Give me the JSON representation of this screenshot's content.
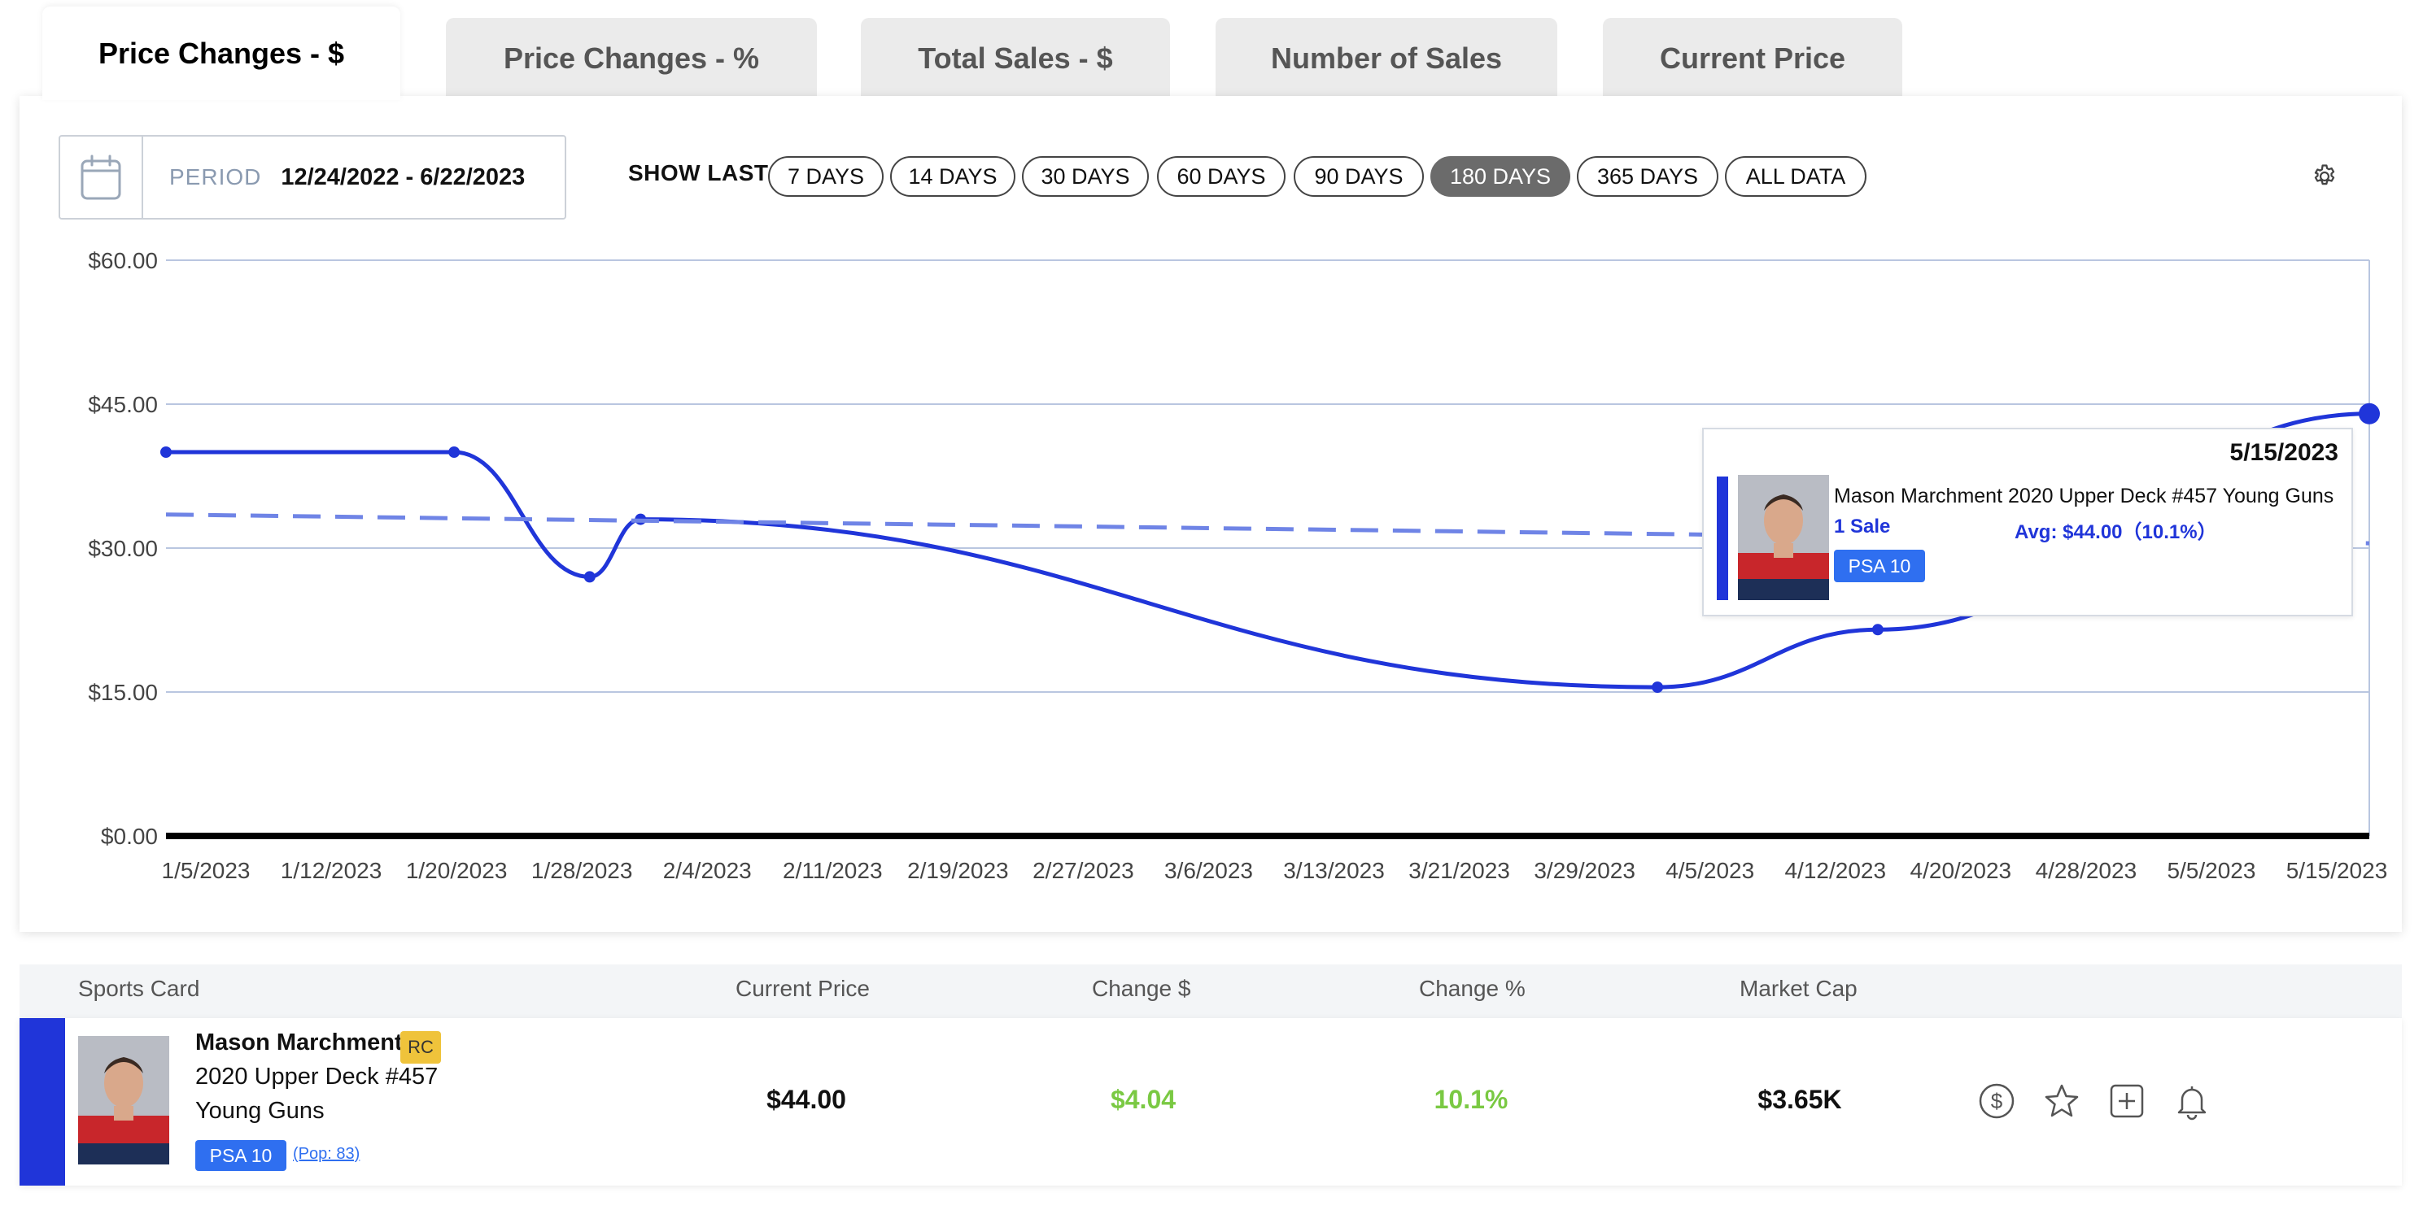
{
  "tabs": [
    {
      "label": "Price Changes - $",
      "active": true
    },
    {
      "label": "Price Changes - %",
      "active": false
    },
    {
      "label": "Total Sales - $",
      "active": false
    },
    {
      "label": "Number of Sales",
      "active": false
    },
    {
      "label": "Current Price",
      "active": false
    }
  ],
  "period": {
    "label": "PERIOD",
    "value": "12/24/2022 - 6/22/2023"
  },
  "show_last": {
    "label": "SHOW LAST",
    "options": [
      "7 DAYS",
      "14 DAYS",
      "30 DAYS",
      "60 DAYS",
      "90 DAYS",
      "180 DAYS",
      "365 DAYS",
      "ALL DATA"
    ],
    "selected": "180 DAYS"
  },
  "chart_data": {
    "type": "line",
    "title": "",
    "xlabel": "",
    "ylabel": "",
    "ylim": [
      0,
      60
    ],
    "y_ticks": [
      0,
      15,
      30,
      45,
      60
    ],
    "y_tick_labels": [
      "$0.00",
      "$15.00",
      "$30.00",
      "$45.00",
      "$60.00"
    ],
    "x_tick_labels": [
      "1/5/2023",
      "1/12/2023",
      "1/20/2023",
      "1/28/2023",
      "2/4/2023",
      "2/11/2023",
      "2/19/2023",
      "2/27/2023",
      "3/6/2023",
      "3/13/2023",
      "3/21/2023",
      "3/29/2023",
      "4/5/2023",
      "4/12/2023",
      "4/20/2023",
      "4/28/2023",
      "5/5/2023",
      "5/15/2023"
    ],
    "xlim": [
      "2023-01-05",
      "2023-05-15"
    ],
    "grid": true,
    "series": [
      {
        "style": "solid",
        "color": "#2035d9",
        "points": [
          {
            "x": "2023-01-05",
            "y": 40.0
          },
          {
            "x": "2023-01-22",
            "y": 40.0
          },
          {
            "x": "2023-01-30",
            "y": 27.0
          },
          {
            "x": "2023-02-02",
            "y": 33.0
          },
          {
            "x": "2023-04-03",
            "y": 15.5
          },
          {
            "x": "2023-04-16",
            "y": 21.5
          },
          {
            "x": "2023-05-15",
            "y": 44.0
          }
        ]
      },
      {
        "style": "dashed",
        "color": "#6f84e6",
        "points": [
          {
            "x": "2023-01-05",
            "y": 33.5
          },
          {
            "x": "2023-05-15",
            "y": 30.5
          }
        ]
      }
    ]
  },
  "tooltip": {
    "date": "5/15/2023",
    "name": "Mason Marchment 2020 Upper Deck #457 Young Guns",
    "sales": "1 Sale",
    "avg": "Avg: $44.00（10.1%）",
    "grade": "PSA 10"
  },
  "table": {
    "headers": [
      "Sports Card",
      "Current Price",
      "Change $",
      "Change %",
      "Market Cap"
    ],
    "row": {
      "name": "Mason Marchment",
      "rc": "RC",
      "line2": "2020 Upper Deck #457",
      "line3": "Young Guns",
      "grade": "PSA 10",
      "pop": "(Pop: 83)",
      "current_price": "$44.00",
      "change_dollar": "$4.04",
      "change_pct": "10.1%",
      "market_cap": "$3.65K",
      "actions": [
        "dollar-icon",
        "star-icon",
        "plus-square-icon",
        "bell-icon"
      ]
    }
  },
  "colors": {
    "accent": "#2035d9",
    "positive": "#7ac943",
    "badge": "#2f6ff0",
    "rc": "#efc33b"
  }
}
